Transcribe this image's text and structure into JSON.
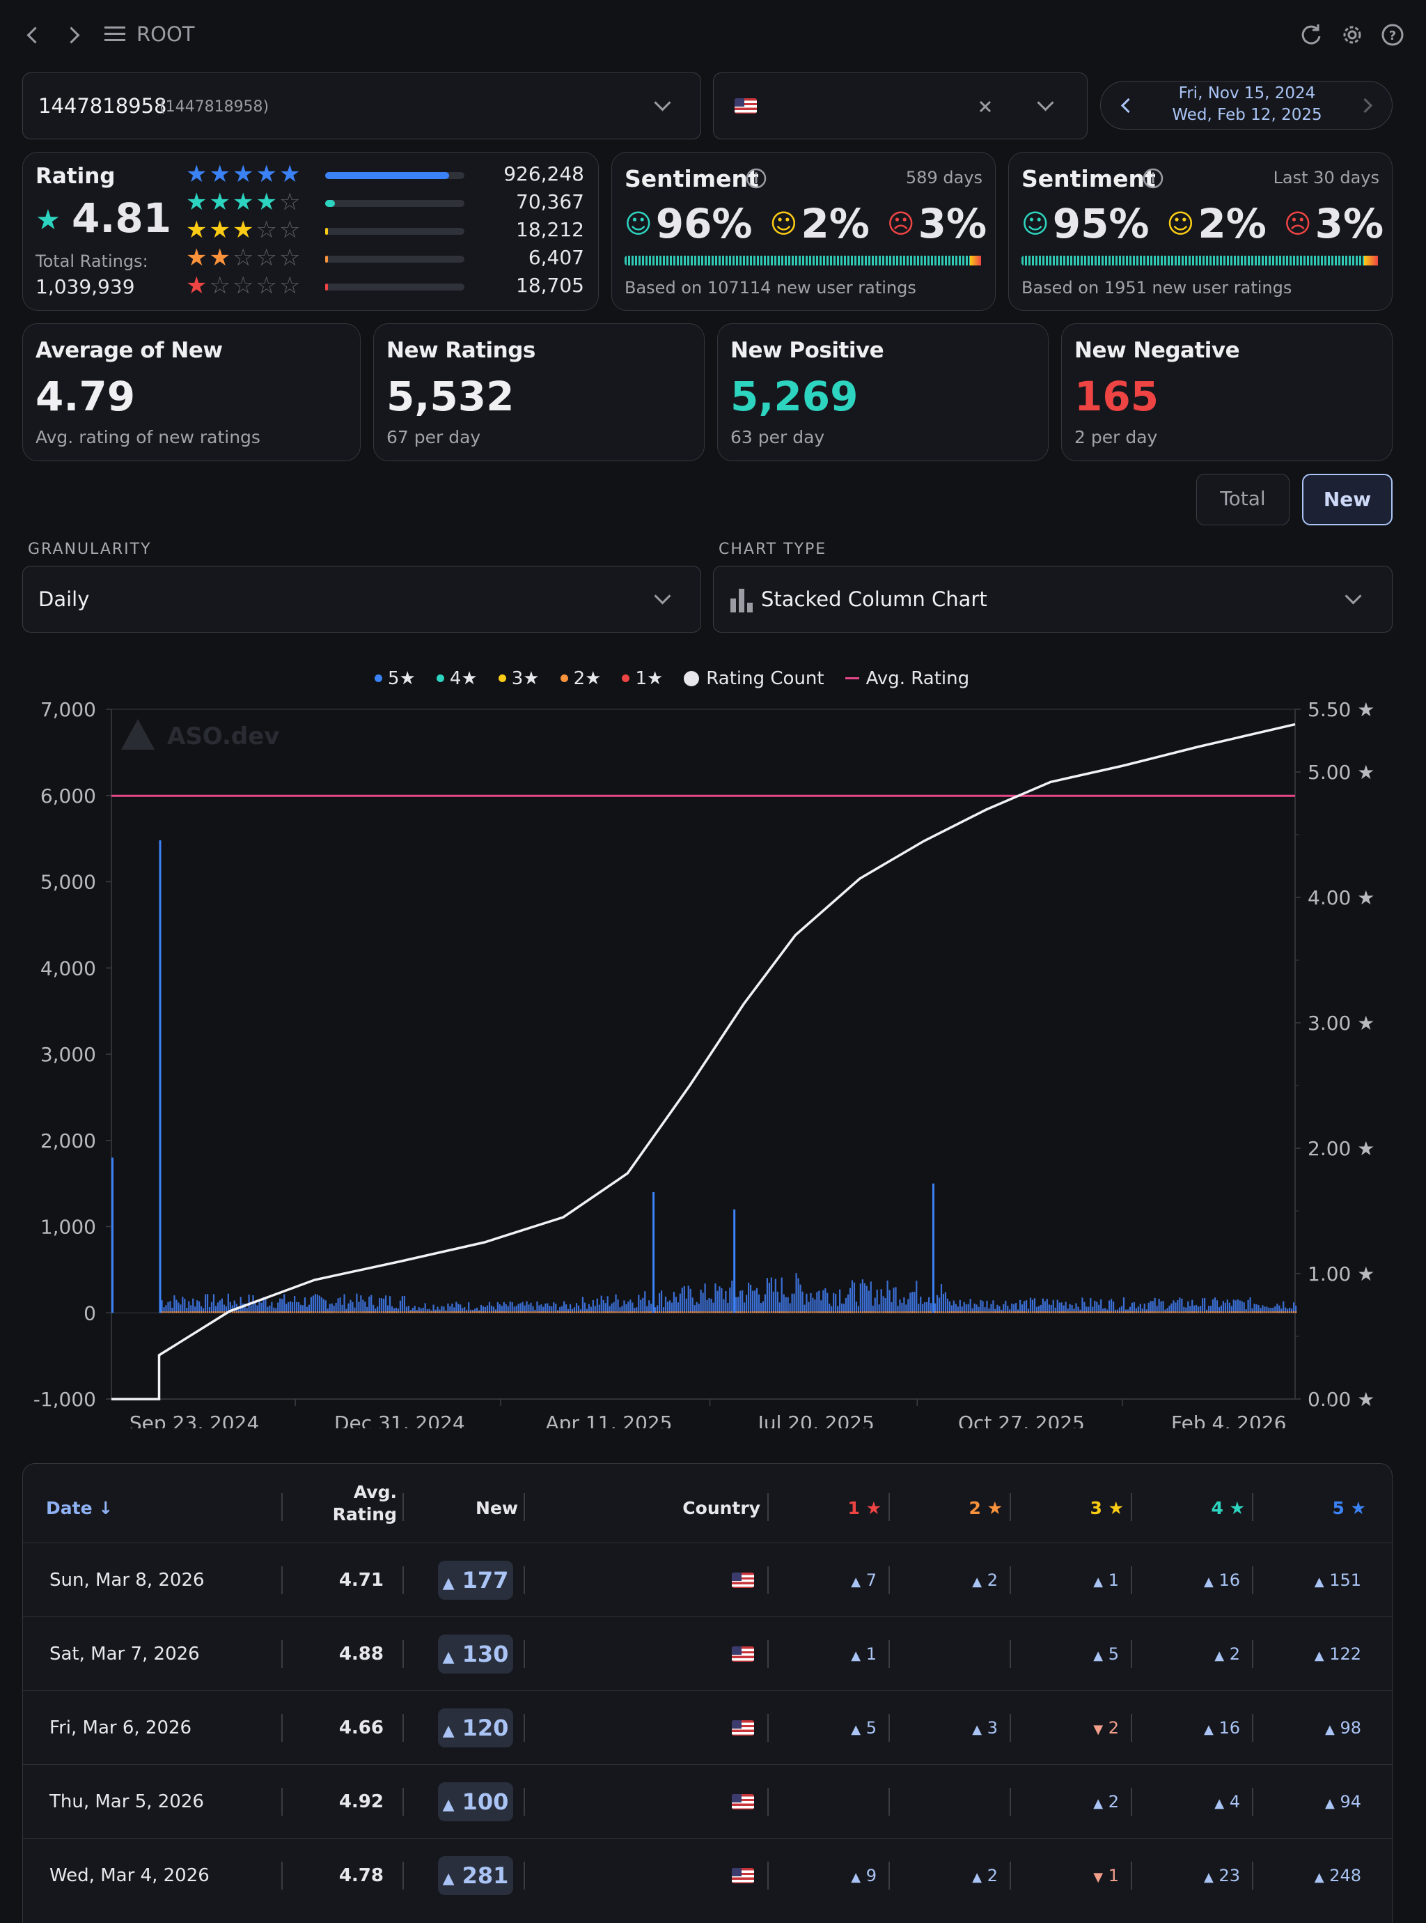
{
  "header": {
    "title": "ROOT"
  },
  "app_select": {
    "value": "1447818958",
    "value_sub": "(1447818958)"
  },
  "country_select": {
    "value": ""
  },
  "date_range": {
    "start": "Fri, Nov 15, 2024",
    "end": "Wed, Feb 12, 2025"
  },
  "rating_card": {
    "title": "Rating",
    "value": "4.81",
    "total_label": "Total Ratings:",
    "total_value": "1,039,939",
    "rows": [
      {
        "stars": 5,
        "count": "926,248",
        "fraction": 0.89,
        "color": "#3b82f6"
      },
      {
        "stars": 4,
        "count": "70,367",
        "fraction": 0.068,
        "color": "#2dd4bf"
      },
      {
        "stars": 3,
        "count": "18,212",
        "fraction": 0.018,
        "color": "#facc15"
      },
      {
        "stars": 2,
        "count": "6,407",
        "fraction": 0.006,
        "color": "#fb923c"
      },
      {
        "stars": 1,
        "count": "18,705",
        "fraction": 0.018,
        "color": "#ef4444"
      }
    ]
  },
  "sentiment_all": {
    "title": "Sentiment",
    "period": "589 days",
    "positive": "96%",
    "neutral": "2%",
    "negative": "3%",
    "based_on": "Based on 107114 new user ratings"
  },
  "sentiment_30": {
    "title": "Sentiment",
    "period": "Last 30 days",
    "positive": "95%",
    "neutral": "2%",
    "negative": "3%",
    "based_on": "Based on 1951 new user ratings"
  },
  "stats": [
    {
      "title": "Average of New",
      "value": "4.79",
      "sub": "Avg. rating of new ratings",
      "color": "#f0f0f3"
    },
    {
      "title": "New Ratings",
      "value": "5,532",
      "sub": "67 per day",
      "color": "#f0f0f3"
    },
    {
      "title": "New Positive",
      "value": "5,269",
      "sub": "63 per day",
      "color": "#2dd4bf"
    },
    {
      "title": "New Negative",
      "value": "165",
      "sub": "2 per day",
      "color": "#ef4444"
    }
  ],
  "toggle": {
    "total": "Total",
    "new": "New"
  },
  "granularity": {
    "label": "GRANULARITY",
    "value": "Daily"
  },
  "chart_type": {
    "label": "CHART TYPE",
    "value": "Stacked Column Chart"
  },
  "chart_data": {
    "type": "bar",
    "subtype": "stacked-column with lines",
    "legend": [
      "5★",
      "4★",
      "3★",
      "2★",
      "1★",
      "Rating Count",
      "Avg. Rating"
    ],
    "legend_colors": [
      "#3b82f6",
      "#2dd4bf",
      "#facc15",
      "#fb923c",
      "#ef4444",
      "#e8e8ec",
      "#e8488a"
    ],
    "watermark": "ASO.dev",
    "y_left": {
      "min": -1000,
      "max": 7000,
      "ticks": [
        "7,000",
        "6,000",
        "5,000",
        "4,000",
        "3,000",
        "2,000",
        "1,000",
        "0",
        "-1,000"
      ]
    },
    "y_right": {
      "min": 0,
      "max": 5.5,
      "ticks": [
        "5.50 ★",
        "5.00 ★",
        "4.00 ★",
        "3.00 ★",
        "2.00 ★",
        "1.00 ★",
        "0.00 ★"
      ]
    },
    "x_ticks": [
      "Sep 23, 2024",
      "Dec 31, 2024",
      "Apr 11, 2025",
      "Jul 20, 2025",
      "Oct 27, 2025",
      "Feb 4, 2026"
    ],
    "x_range": [
      "2024-08-14",
      "2026-03-08"
    ],
    "spikes": [
      {
        "date": "2024-08-14",
        "value": 1800
      },
      {
        "date": "2024-09-06",
        "value": 5480
      },
      {
        "date": "2025-05-02",
        "value": 1400
      },
      {
        "date": "2025-06-10",
        "value": 1200
      },
      {
        "date": "2025-09-14",
        "value": 1500
      }
    ],
    "avg_rating_level": 4.81,
    "rating_count_points": [
      [
        "2024-08-14",
        0.0
      ],
      [
        "2024-09-06",
        0.0
      ],
      [
        "2024-09-06",
        0.35
      ],
      [
        "2024-10-10",
        0.7
      ],
      [
        "2024-11-20",
        0.95
      ],
      [
        "2025-01-01",
        1.1
      ],
      [
        "2025-02-10",
        1.25
      ],
      [
        "2025-03-20",
        1.45
      ],
      [
        "2025-04-20",
        1.8
      ],
      [
        "2025-05-20",
        2.5
      ],
      [
        "2025-06-15",
        3.15
      ],
      [
        "2025-07-10",
        3.7
      ],
      [
        "2025-08-10",
        4.15
      ],
      [
        "2025-09-10",
        4.45
      ],
      [
        "2025-10-10",
        4.7
      ],
      [
        "2025-11-10",
        4.92
      ],
      [
        "2025-12-15",
        5.05
      ],
      [
        "2026-01-20",
        5.2
      ],
      [
        "2026-03-08",
        5.38
      ]
    ]
  },
  "table": {
    "headers": {
      "date": "Date",
      "avg": "Avg.",
      "rating": "Rating",
      "new": "New",
      "country": "Country",
      "s1": "1",
      "s2": "2",
      "s3": "3",
      "s4": "4",
      "s5": "5"
    },
    "rows": [
      {
        "date": "Sun, Mar 8, 2026",
        "avg": "4.71",
        "new": "177",
        "s1": "7",
        "s2": "2",
        "s3": "1",
        "s4": "16",
        "s5": "151",
        "s3dir": "up"
      },
      {
        "date": "Sat, Mar 7, 2026",
        "avg": "4.88",
        "new": "130",
        "s1": "1",
        "s2": "",
        "s3": "5",
        "s4": "2",
        "s5": "122",
        "s3dir": "up"
      },
      {
        "date": "Fri, Mar 6, 2026",
        "avg": "4.66",
        "new": "120",
        "s1": "5",
        "s2": "3",
        "s3": "2",
        "s4": "16",
        "s5": "98",
        "s3dir": "down"
      },
      {
        "date": "Thu, Mar 5, 2026",
        "avg": "4.92",
        "new": "100",
        "s1": "",
        "s2": "",
        "s3": "2",
        "s4": "4",
        "s5": "94",
        "s3dir": "up"
      },
      {
        "date": "Wed, Mar 4, 2026",
        "avg": "4.78",
        "new": "281",
        "s1": "9",
        "s2": "2",
        "s3": "1",
        "s4": "23",
        "s5": "248",
        "s3dir": "down"
      }
    ]
  }
}
